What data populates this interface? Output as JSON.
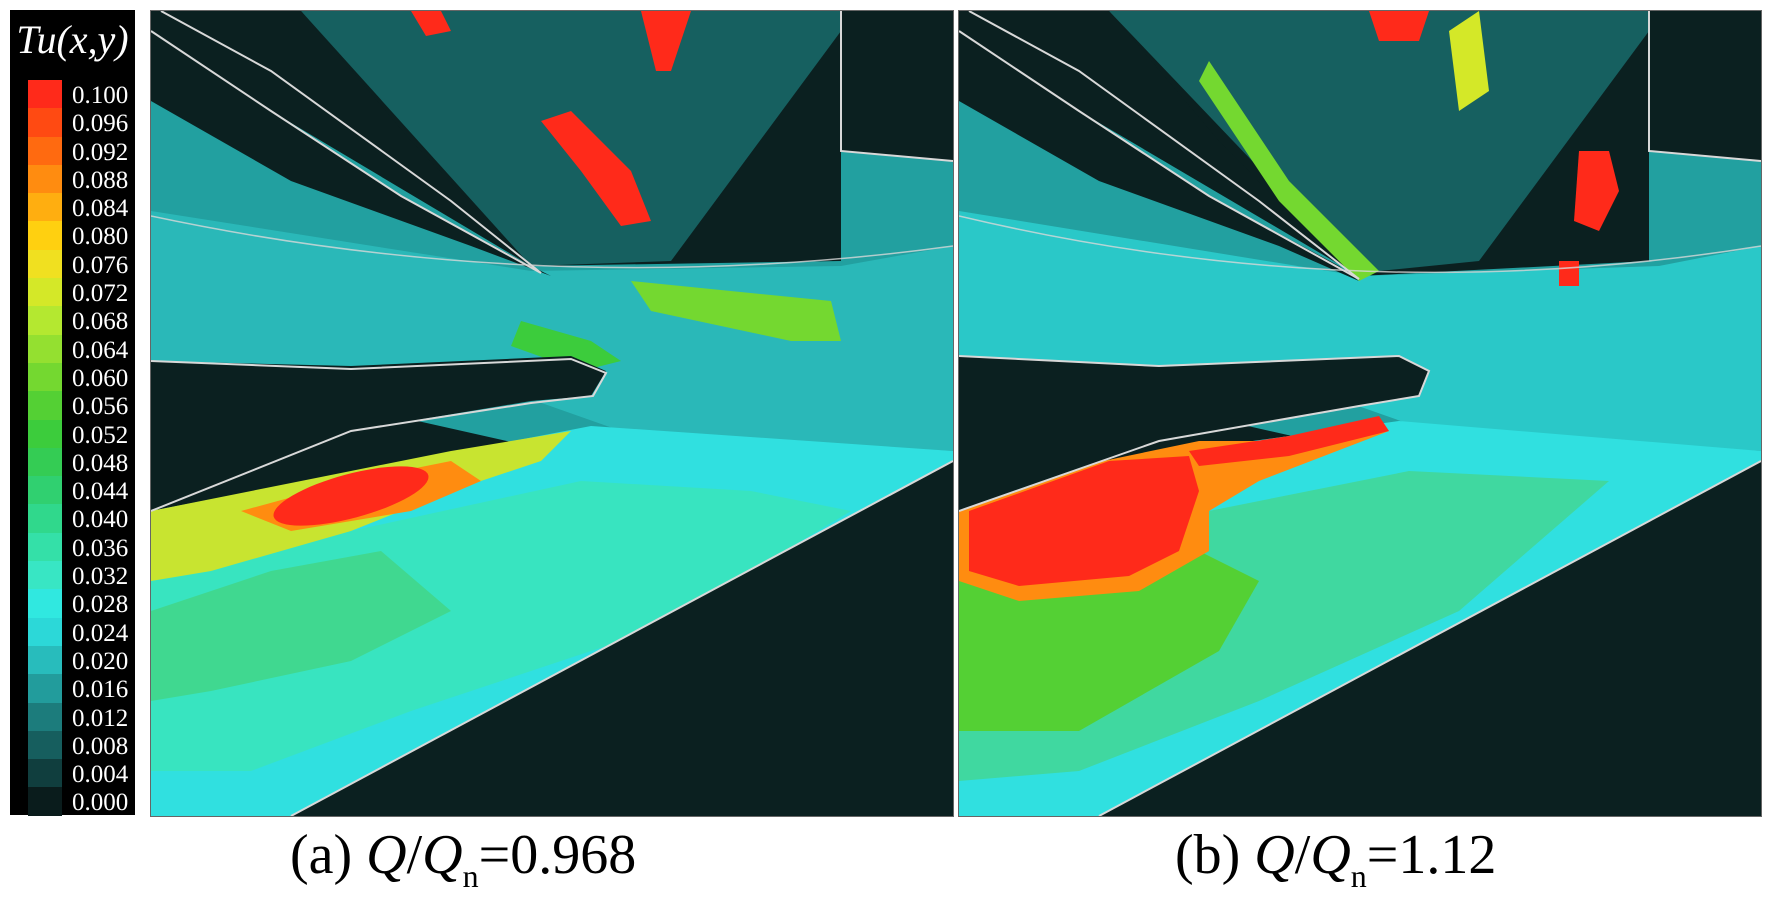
{
  "chart_data": [
    {
      "type": "heatmap",
      "panel": "a",
      "caption_prefix": "(a) ",
      "caption_var_q": "Q",
      "caption_slash": "/",
      "caption_var_qn": "Q",
      "caption_subscript": "n",
      "caption_value": "=0.968",
      "high_regions": [
        {
          "region": "pressure-side band below lower blade",
          "level": 0.1
        },
        {
          "region": "upper-right wake streak",
          "level": 0.1
        }
      ]
    },
    {
      "type": "heatmap",
      "panel": "b",
      "caption_prefix": "(b) ",
      "caption_var_q": "Q",
      "caption_slash": "/",
      "caption_var_qn": "Q",
      "caption_subscript": "n",
      "caption_value": "=1.12",
      "high_regions": [
        {
          "region": "large separation zone at lower-left",
          "level": 0.1
        },
        {
          "region": "streak along lower blade suction side",
          "level": 0.1
        },
        {
          "region": "upper-right wake patches",
          "level": 0.1
        }
      ]
    }
  ],
  "legend": {
    "title": "Tu(x,y)",
    "levels": [
      {
        "label": "0.100",
        "color": "#ff2a1a"
      },
      {
        "label": "0.096",
        "color": "#ff4a12"
      },
      {
        "label": "0.092",
        "color": "#ff6a10"
      },
      {
        "label": "0.088",
        "color": "#ff8c10"
      },
      {
        "label": "0.084",
        "color": "#ffae10"
      },
      {
        "label": "0.080",
        "color": "#ffd010"
      },
      {
        "label": "0.076",
        "color": "#f0e020"
      },
      {
        "label": "0.072",
        "color": "#d4e828"
      },
      {
        "label": "0.068",
        "color": "#b4e830"
      },
      {
        "label": "0.064",
        "color": "#94e030"
      },
      {
        "label": "0.060",
        "color": "#74d830"
      },
      {
        "label": "0.056",
        "color": "#54d034"
      },
      {
        "label": "0.052",
        "color": "#3ccc3c"
      },
      {
        "label": "0.048",
        "color": "#34cc54"
      },
      {
        "label": "0.044",
        "color": "#30d070"
      },
      {
        "label": "0.040",
        "color": "#30d88c"
      },
      {
        "label": "0.036",
        "color": "#34e0a8"
      },
      {
        "label": "0.032",
        "color": "#38e6c4"
      },
      {
        "label": "0.028",
        "color": "#30e8e0"
      },
      {
        "label": "0.024",
        "color": "#2cd8d8"
      },
      {
        "label": "0.020",
        "color": "#28bcbc"
      },
      {
        "label": "0.016",
        "color": "#229c9c"
      },
      {
        "label": "0.012",
        "color": "#1c7c7c"
      },
      {
        "label": "0.008",
        "color": "#165e5e"
      },
      {
        "label": "0.004",
        "color": "#103e3e"
      },
      {
        "label": "0.000",
        "color": "#0a1c1c"
      }
    ]
  }
}
